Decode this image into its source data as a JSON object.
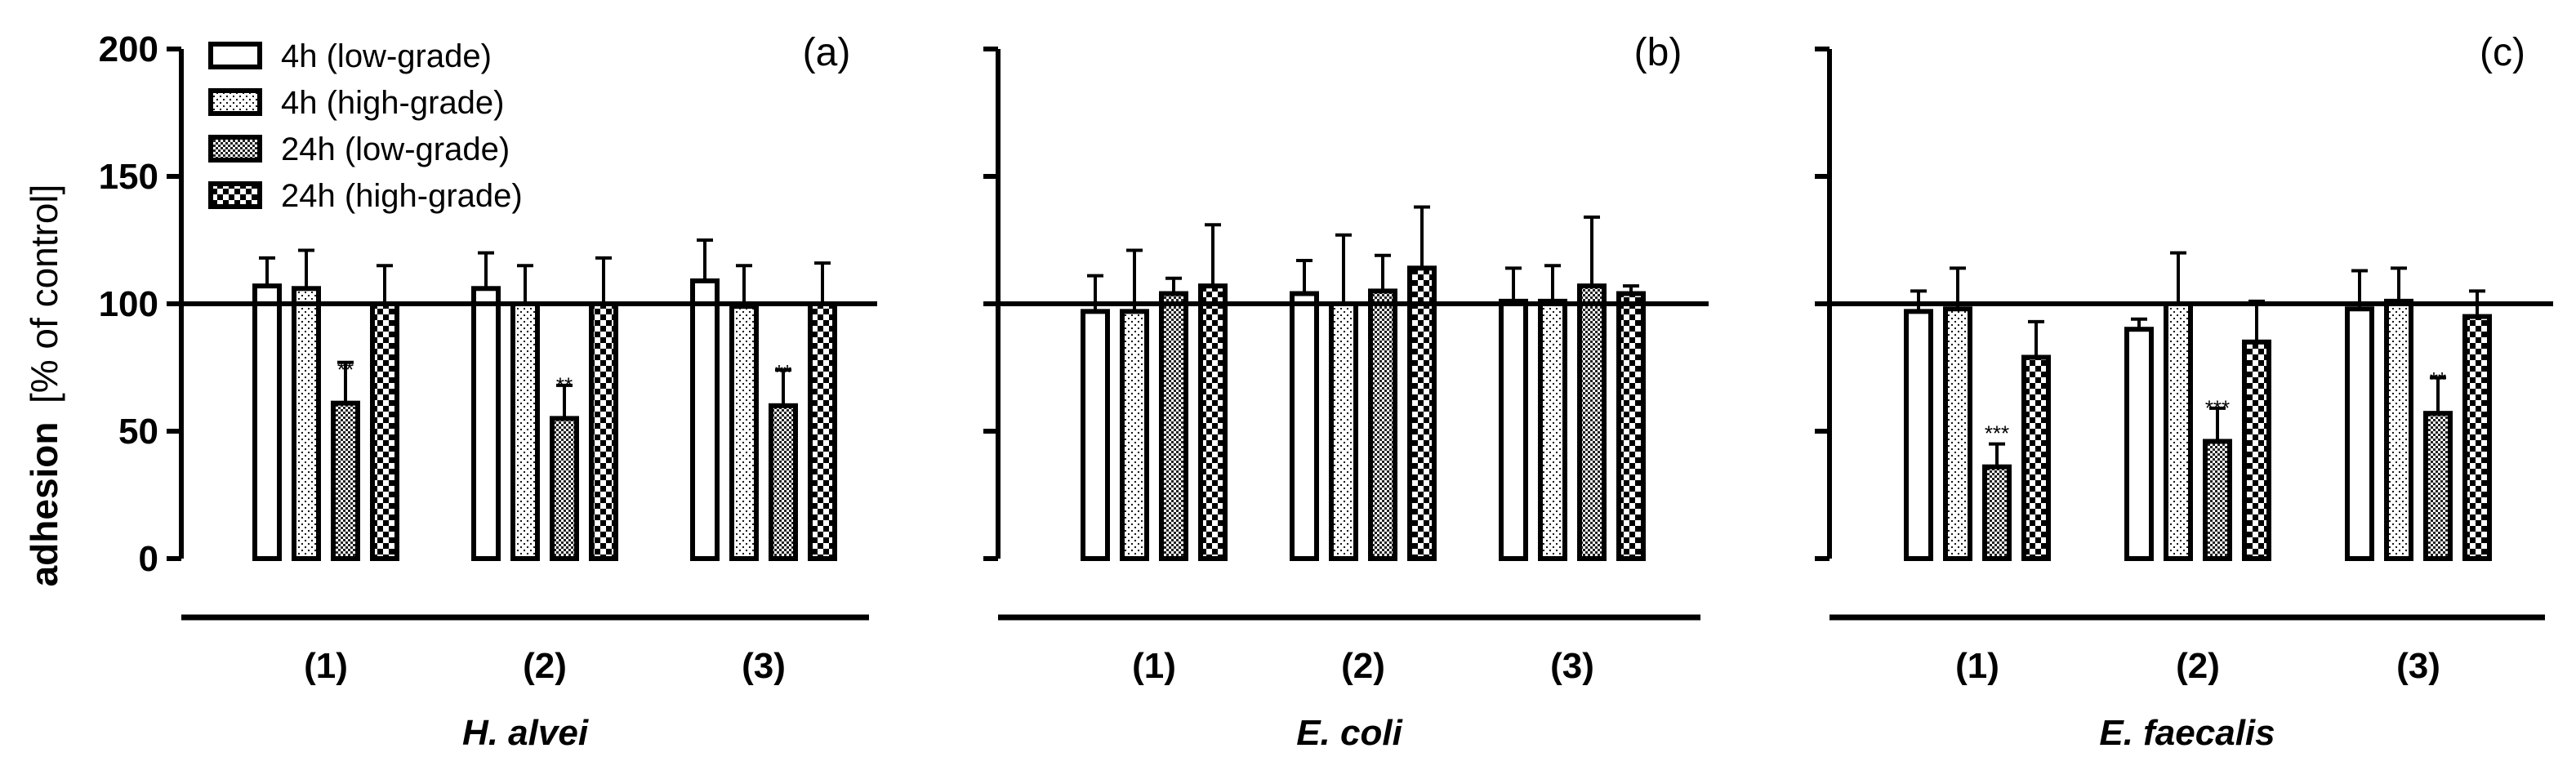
{
  "chart_data": {
    "type": "bar",
    "y_axis": {
      "label": "adhesion",
      "unit": "[% of control]",
      "ylim": [
        0,
        200
      ],
      "ticks": [
        0,
        50,
        100,
        150,
        200
      ],
      "reference_line": 100
    },
    "legend": {
      "placement": "top-left",
      "entries": [
        {
          "label": "4h (low-grade)",
          "pattern": "open"
        },
        {
          "label": "4h (high-grade)",
          "pattern": "dotted"
        },
        {
          "label": "24h (low-grade)",
          "pattern": "cross-hatch"
        },
        {
          "label": "24h (high-grade)",
          "pattern": "checker"
        }
      ]
    },
    "panels": [
      {
        "letter": "(a)",
        "title": "H. alvei",
        "categories": [
          "(1)",
          "(2)",
          "(3)"
        ],
        "series": [
          {
            "name": "4h (low-grade)",
            "values": [
              107,
              106,
              109
            ],
            "errors": [
              11,
              14,
              16
            ]
          },
          {
            "name": "4h (high-grade)",
            "values": [
              106,
              100,
              99
            ],
            "errors": [
              15,
              15,
              16
            ]
          },
          {
            "name": "24h (low-grade)",
            "values": [
              61,
              55,
              60
            ],
            "errors": [
              16,
              13,
              14
            ],
            "significance": [
              "**",
              "**",
              "**"
            ]
          },
          {
            "name": "24h (high-grade)",
            "values": [
              100,
              100,
              100
            ],
            "errors": [
              15,
              18,
              16
            ]
          }
        ]
      },
      {
        "letter": "(b)",
        "title": "E. coli",
        "categories": [
          "(1)",
          "(2)",
          "(3)"
        ],
        "series": [
          {
            "name": "4h (low-grade)",
            "values": [
              97,
              104,
              101
            ],
            "errors": [
              14,
              13,
              13
            ]
          },
          {
            "name": "4h (high-grade)",
            "values": [
              97,
              100,
              101
            ],
            "errors": [
              24,
              27,
              14
            ]
          },
          {
            "name": "24h (low-grade)",
            "values": [
              104,
              105,
              107
            ],
            "errors": [
              6,
              14,
              27
            ]
          },
          {
            "name": "24h (high-grade)",
            "values": [
              107,
              114,
              104
            ],
            "errors": [
              24,
              24,
              3
            ]
          }
        ]
      },
      {
        "letter": "(c)",
        "title": "E. faecalis",
        "categories": [
          "(1)",
          "(2)",
          "(3)"
        ],
        "series": [
          {
            "name": "4h (low-grade)",
            "values": [
              97,
              90,
              98
            ],
            "errors": [
              8,
              4,
              15
            ]
          },
          {
            "name": "4h (high-grade)",
            "values": [
              98,
              100,
              101
            ],
            "errors": [
              16,
              20,
              13
            ]
          },
          {
            "name": "24h (low-grade)",
            "values": [
              36,
              46,
              57
            ],
            "errors": [
              9,
              13,
              14
            ],
            "significance": [
              "***",
              "***",
              "**"
            ]
          },
          {
            "name": "24h (high-grade)",
            "values": [
              79,
              85,
              95
            ],
            "errors": [
              14,
              16,
              10
            ]
          }
        ]
      }
    ]
  }
}
